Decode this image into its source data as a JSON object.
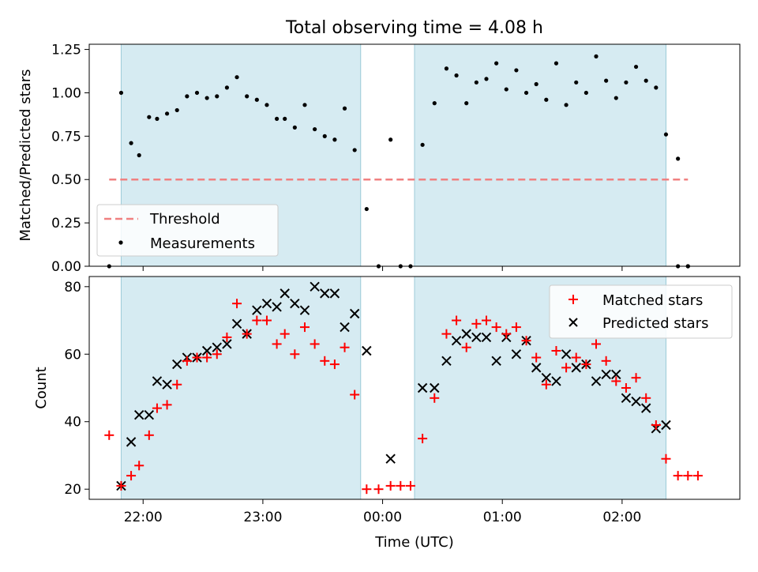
{
  "chart_data": [
    {
      "type": "scatter",
      "title": "Total observing time = 4.08 h",
      "xlabel": "",
      "ylabel": "Matched/Predicted stars",
      "ylim": [
        0,
        1.28
      ],
      "xlim": [
        "21:33",
        "02:59"
      ],
      "yticks": [
        "0.00",
        "0.25",
        "0.50",
        "0.75",
        "1.00",
        "1.25"
      ],
      "shaded_intervals": [
        [
          "21:49",
          "23:49"
        ],
        [
          "00:16",
          "02:22"
        ]
      ],
      "threshold": {
        "label": "Threshold",
        "value": 0.5,
        "x_range": [
          "21:43",
          "02:33"
        ],
        "color": "#f08080"
      },
      "legend": {
        "placement": "lower-left",
        "entries": [
          "Threshold",
          "Measurements"
        ]
      },
      "series": [
        {
          "name": "Measurements",
          "color": "#000000",
          "x": [
            "21:43",
            "21:49",
            "21:54",
            "21:58",
            "22:03",
            "22:07",
            "22:12",
            "22:17",
            "22:22",
            "22:27",
            "22:32",
            "22:37",
            "22:42",
            "22:47",
            "22:52",
            "22:57",
            "23:02",
            "23:07",
            "23:11",
            "23:16",
            "23:21",
            "23:26",
            "23:31",
            "23:36",
            "23:41",
            "23:46",
            "23:52",
            "23:58",
            "00:04",
            "00:09",
            "00:14",
            "00:20",
            "00:26",
            "00:32",
            "00:37",
            "00:42",
            "00:47",
            "00:52",
            "00:57",
            "01:02",
            "01:07",
            "01:12",
            "01:17",
            "01:22",
            "01:27",
            "01:32",
            "01:37",
            "01:42",
            "01:47",
            "01:52",
            "01:57",
            "02:02",
            "02:07",
            "02:12",
            "02:17",
            "02:22",
            "02:28",
            "02:33"
          ],
          "y": [
            0.0,
            1.0,
            0.71,
            0.64,
            0.86,
            0.85,
            0.88,
            0.9,
            0.98,
            1.0,
            0.97,
            0.98,
            1.03,
            1.09,
            0.98,
            0.96,
            0.93,
            0.85,
            0.85,
            0.8,
            0.93,
            0.79,
            0.75,
            0.73,
            0.91,
            0.67,
            0.33,
            0.0,
            0.73,
            0.0,
            0.0,
            0.7,
            0.94,
            1.14,
            1.1,
            0.94,
            1.06,
            1.08,
            1.17,
            1.02,
            1.13,
            1.0,
            1.05,
            0.96,
            1.17,
            0.93,
            1.06,
            1.0,
            1.21,
            1.07,
            0.97,
            1.06,
            1.15,
            1.07,
            1.03,
            0.76,
            0.62,
            0.0
          ]
        }
      ],
      "extra_points": {
        "x": [
          "02:28",
          "02:33"
        ],
        "y": [
          0.0,
          0.0
        ]
      }
    },
    {
      "type": "scatter",
      "title": "",
      "xlabel": "Time (UTC)",
      "ylabel": "Count",
      "ylim": [
        17,
        83
      ],
      "xlim": [
        "21:33",
        "02:59"
      ],
      "xticks": [
        "22:00",
        "23:00",
        "00:00",
        "01:00",
        "02:00"
      ],
      "yticks": [
        "20",
        "40",
        "60",
        "80"
      ],
      "shaded_intervals": [
        [
          "21:49",
          "23:49"
        ],
        [
          "00:16",
          "02:22"
        ]
      ],
      "legend": {
        "placement": "upper-right",
        "entries": [
          "Matched stars",
          "Predicted stars"
        ]
      },
      "series": [
        {
          "name": "Matched stars",
          "marker": "plus",
          "color": "#ff0000",
          "x": [
            "21:43",
            "21:49",
            "21:54",
            "21:58",
            "22:03",
            "22:07",
            "22:12",
            "22:17",
            "22:22",
            "22:27",
            "22:32",
            "22:37",
            "22:42",
            "22:47",
            "22:52",
            "22:57",
            "23:02",
            "23:07",
            "23:11",
            "23:16",
            "23:21",
            "23:26",
            "23:31",
            "23:36",
            "23:41",
            "23:46",
            "23:52",
            "23:58",
            "00:04",
            "00:09",
            "00:14",
            "00:20",
            "00:26",
            "00:32",
            "00:37",
            "00:42",
            "00:47",
            "00:52",
            "00:57",
            "01:02",
            "01:07",
            "01:12",
            "01:17",
            "01:22",
            "01:27",
            "01:32",
            "01:37",
            "01:42",
            "01:47",
            "01:52",
            "01:57",
            "02:02",
            "02:07",
            "02:12",
            "02:17",
            "02:22",
            "02:28",
            "02:33",
            "02:38"
          ],
          "y": [
            36,
            21,
            24,
            27,
            36,
            44,
            45,
            51,
            58,
            59,
            59,
            60,
            65,
            75,
            66,
            70,
            70,
            63,
            66,
            60,
            68,
            63,
            58,
            57,
            62,
            48,
            20,
            20,
            21,
            21,
            21,
            35,
            47,
            66,
            70,
            62,
            69,
            70,
            68,
            66,
            68,
            64,
            59,
            51,
            61,
            56,
            59,
            57,
            63,
            58,
            52,
            50,
            53,
            47,
            39,
            29,
            24,
            24,
            24
          ]
        },
        {
          "name": "Predicted stars",
          "marker": "x",
          "color": "#000000",
          "x": [
            "21:49",
            "21:54",
            "21:58",
            "22:03",
            "22:07",
            "22:12",
            "22:17",
            "22:22",
            "22:27",
            "22:32",
            "22:37",
            "22:42",
            "22:47",
            "22:52",
            "22:57",
            "23:02",
            "23:07",
            "23:11",
            "23:16",
            "23:21",
            "23:26",
            "23:31",
            "23:36",
            "23:41",
            "23:46",
            "23:52",
            "00:04",
            "00:20",
            "00:26",
            "00:32",
            "00:37",
            "00:42",
            "00:47",
            "00:52",
            "00:57",
            "01:02",
            "01:07",
            "01:12",
            "01:17",
            "01:22",
            "01:27",
            "01:32",
            "01:37",
            "01:42",
            "01:47",
            "01:52",
            "01:57",
            "02:02",
            "02:07",
            "02:12",
            "02:17",
            "02:22"
          ],
          "y": [
            21,
            34,
            42,
            42,
            52,
            51,
            57,
            59,
            59,
            61,
            62,
            63,
            69,
            66,
            73,
            75,
            74,
            78,
            75,
            73,
            80,
            78,
            78,
            68,
            72,
            61,
            29,
            50,
            50,
            58,
            64,
            66,
            65,
            65,
            58,
            65,
            60,
            64,
            56,
            53,
            52,
            60,
            56,
            57,
            52,
            54,
            54,
            47,
            46,
            44,
            38,
            39
          ]
        }
      ]
    }
  ]
}
